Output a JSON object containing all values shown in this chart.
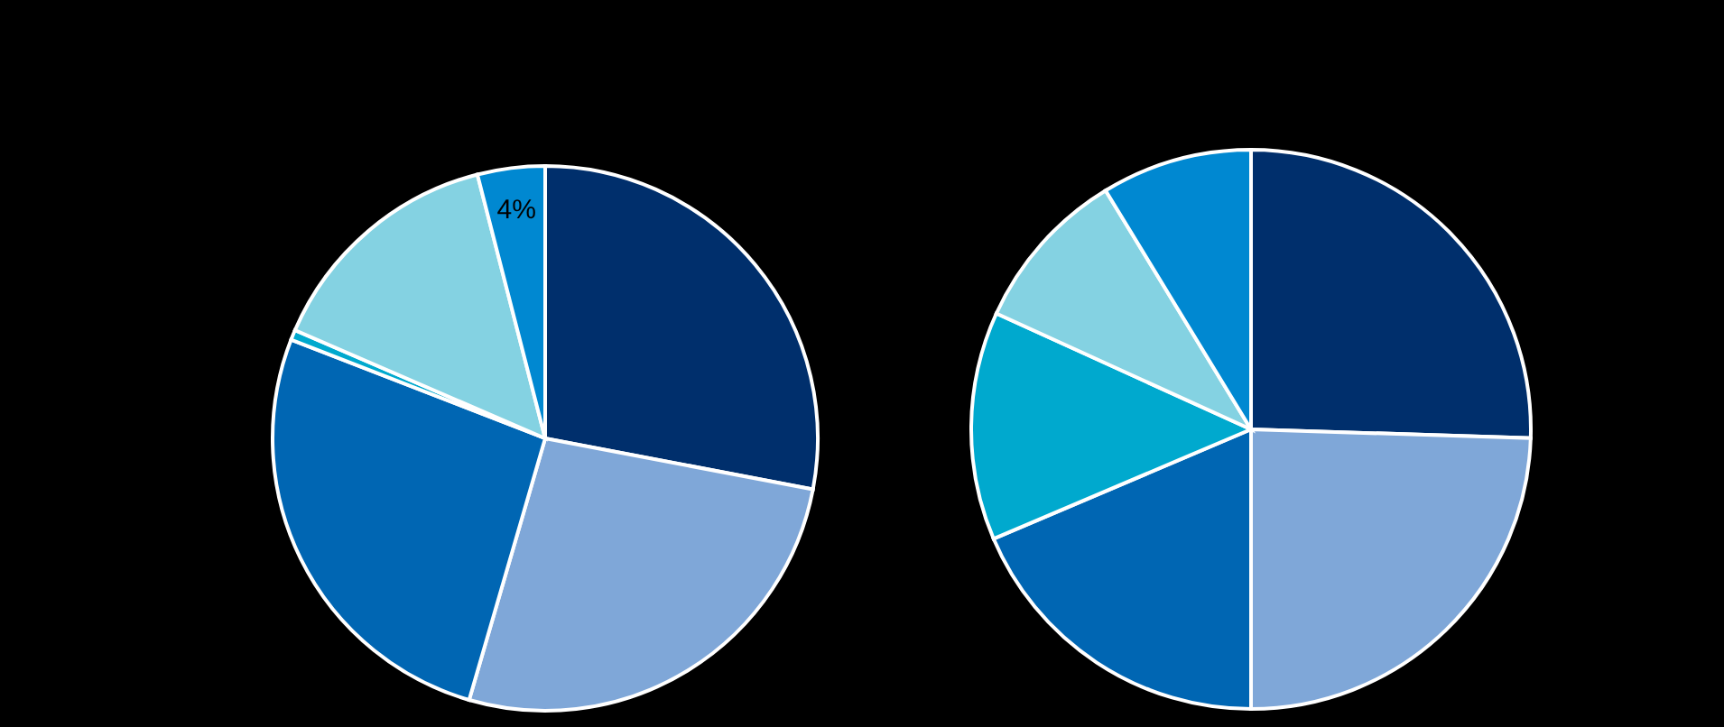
{
  "chart_data": [
    {
      "type": "pie",
      "categories": [
        null,
        null,
        null,
        null,
        null,
        null
      ],
      "values": [
        28,
        26.5,
        26.4,
        0.6,
        14.5,
        4
      ],
      "colors": [
        "#002f6c",
        "#7fa7d8",
        "#0066b3",
        "#00a9ce",
        "#84d2e2",
        "#0088d1"
      ],
      "value_labels": [
        null,
        null,
        null,
        null,
        null,
        "4%"
      ]
    },
    {
      "type": "pie",
      "categories": [
        null,
        null,
        null,
        null,
        null,
        null
      ],
      "values": [
        25.5,
        24.5,
        18.6,
        13.2,
        9.5,
        8.7
      ],
      "colors": [
        "#002f6c",
        "#7fa7d8",
        "#0066b3",
        "#00a9ce",
        "#84d2e2",
        "#0088d1"
      ]
    }
  ]
}
